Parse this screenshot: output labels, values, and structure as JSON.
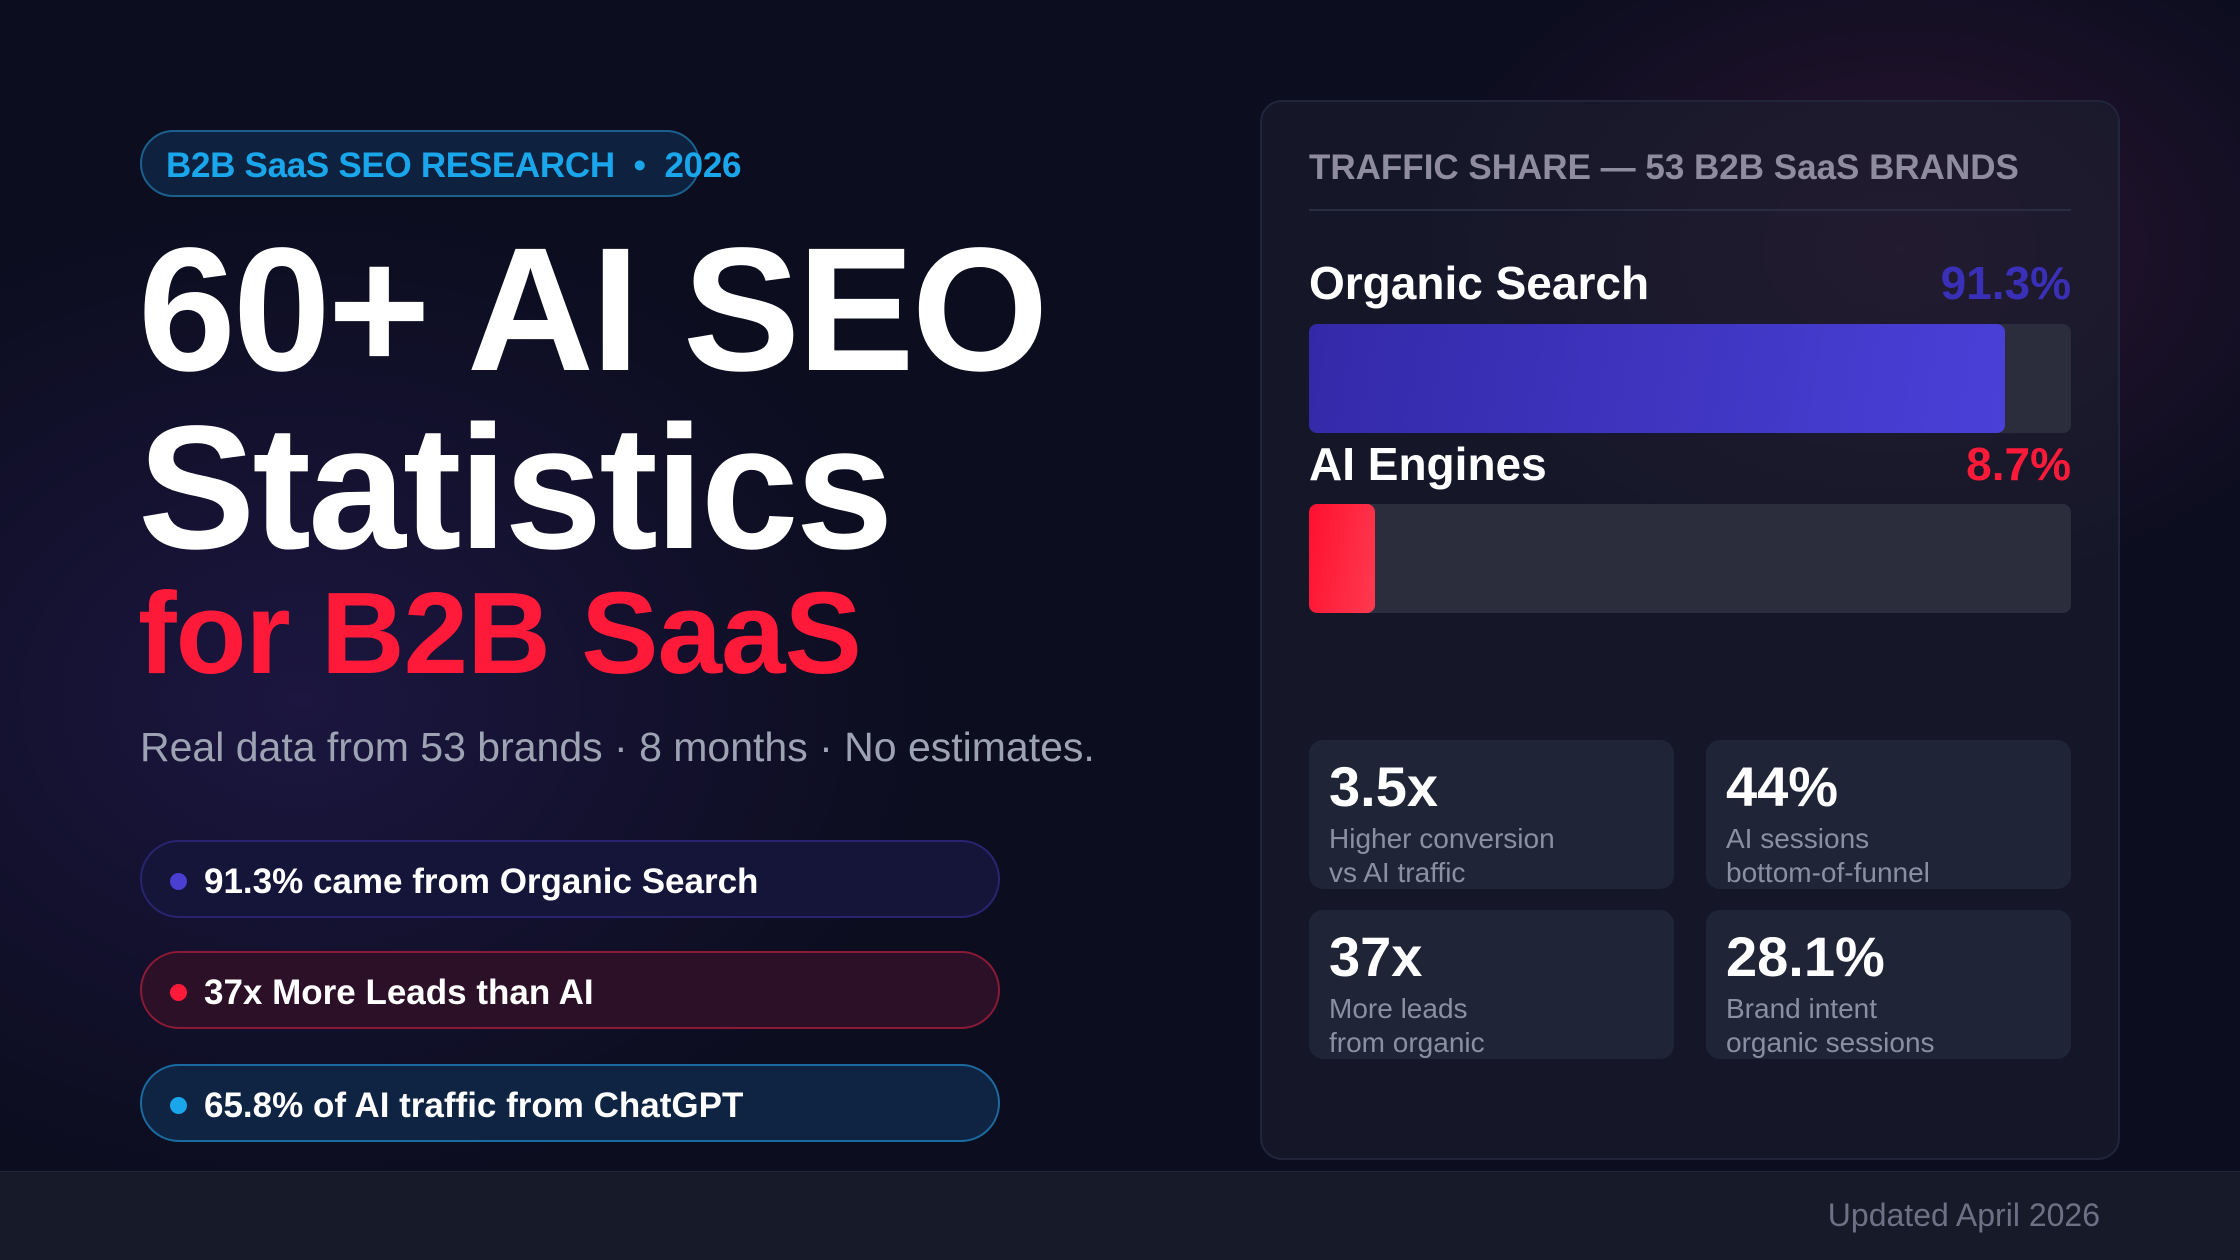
{
  "badge": {
    "text": "B2B SaaS SEO RESEARCH  •  2026"
  },
  "title": {
    "line1": "60+ AI SEO",
    "line2": "Statistics",
    "line3": "for B2B SaaS"
  },
  "subtitle": "Real data from 53 brands · 8 months · No estimates.",
  "highlights": [
    {
      "text": "91.3% came from Organic Search",
      "color": "#4a3fd0"
    },
    {
      "text": "37x More Leads than AI",
      "color": "#ff1a3a"
    },
    {
      "text": "65.8% of AI traffic from ChatGPT",
      "color": "#1aa6ea"
    }
  ],
  "panel": {
    "heading": "TRAFFIC SHARE — 53 B2B SaaS BRANDS",
    "bars": [
      {
        "label": "Organic Search",
        "value_label": "91.3%",
        "value": 91.3,
        "color": "#3f35c8"
      },
      {
        "label": "AI Engines",
        "value_label": "8.7%",
        "value": 8.7,
        "color": "#ff1a3a"
      }
    ],
    "stats": [
      {
        "value": "3.5x",
        "line1": "Higher conversion",
        "line2": "vs AI traffic"
      },
      {
        "value": "44%",
        "line1": "AI sessions",
        "line2": "bottom-of-funnel"
      },
      {
        "value": "37x",
        "line1": "More leads",
        "line2": "from organic"
      },
      {
        "value": "28.1%",
        "line1": "Brand intent",
        "line2": "organic sessions"
      }
    ]
  },
  "footer": {
    "updated": "Updated April 2026"
  }
}
